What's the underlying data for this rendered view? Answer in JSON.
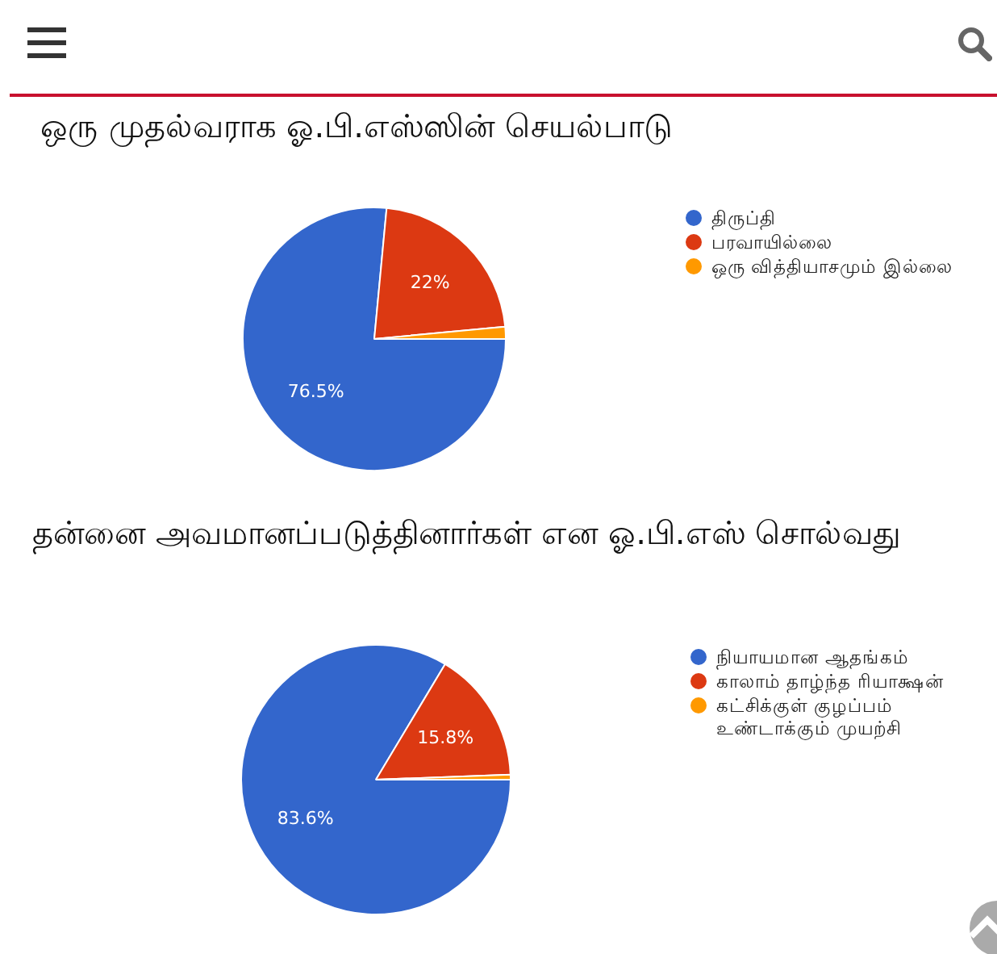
{
  "chart_data": [
    {
      "type": "pie",
      "title": "ஒரு முதல்வராக ஓ.பி.எஸ்ஸின் செயல்பாடு",
      "categories": [
        "திருப்தி",
        "பரவாயில்லை",
        "ஒரு வித்தியாசமும் இல்லை"
      ],
      "values": [
        76.5,
        22,
        1.5
      ],
      "colors": [
        "#3366cc",
        "#dc3912",
        "#ff9900"
      ],
      "value_labels": [
        "76.5%",
        "22%",
        null
      ],
      "legend": "right"
    },
    {
      "type": "pie",
      "title": "தன்னை அவமானப்படுத்தினார்கள் என ஓ.பி.எஸ் சொல்வது",
      "categories": [
        "நியாயமான ஆதங்கம்",
        "காலாம் தாழ்ந்த ரியாக்ஷன்",
        "கட்சிக்குள் குழப்பம் உண்டாக்கும் முயற்சி"
      ],
      "values": [
        83.6,
        15.8,
        0.6
      ],
      "colors": [
        "#3366cc",
        "#dc3912",
        "#ff9900"
      ],
      "value_labels": [
        "83.6%",
        "15.8%",
        null
      ],
      "legend": "right"
    }
  ]
}
